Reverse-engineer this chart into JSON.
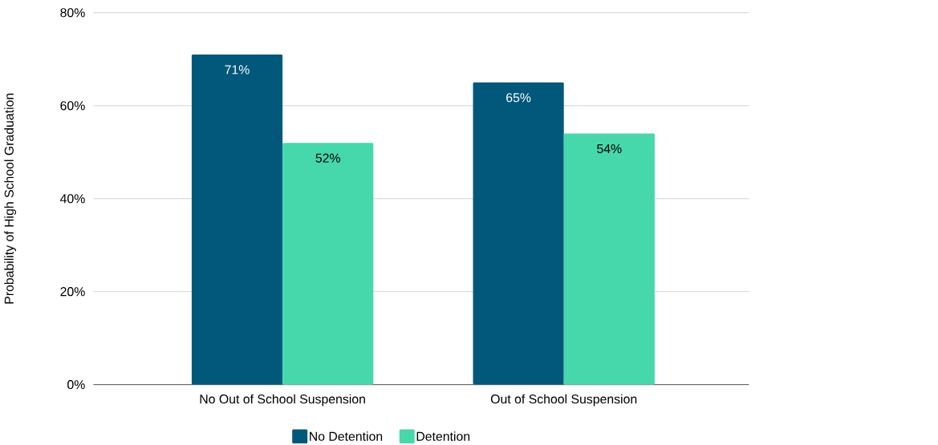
{
  "chart_data": {
    "type": "bar",
    "ylabel": "Probability of High School Graduation",
    "categories": [
      "No Out of School Suspension",
      "Out of School Suspension"
    ],
    "series": [
      {
        "name": "No Detention",
        "color": "#02587a",
        "values": [
          71,
          65
        ],
        "value_labels": [
          "71%",
          "65%"
        ]
      },
      {
        "name": "Detention",
        "color": "#46d8ab",
        "values": [
          52,
          54
        ],
        "value_labels": [
          "52%",
          "54%"
        ]
      }
    ],
    "ylim": [
      0,
      80
    ],
    "yticks": [
      {
        "value": 0,
        "label": "0%"
      },
      {
        "value": 20,
        "label": "20%"
      },
      {
        "value": 40,
        "label": "40%"
      },
      {
        "value": 60,
        "label": "60%"
      },
      {
        "value": 80,
        "label": "80%"
      }
    ],
    "grid": "y",
    "legend": "bottom"
  }
}
